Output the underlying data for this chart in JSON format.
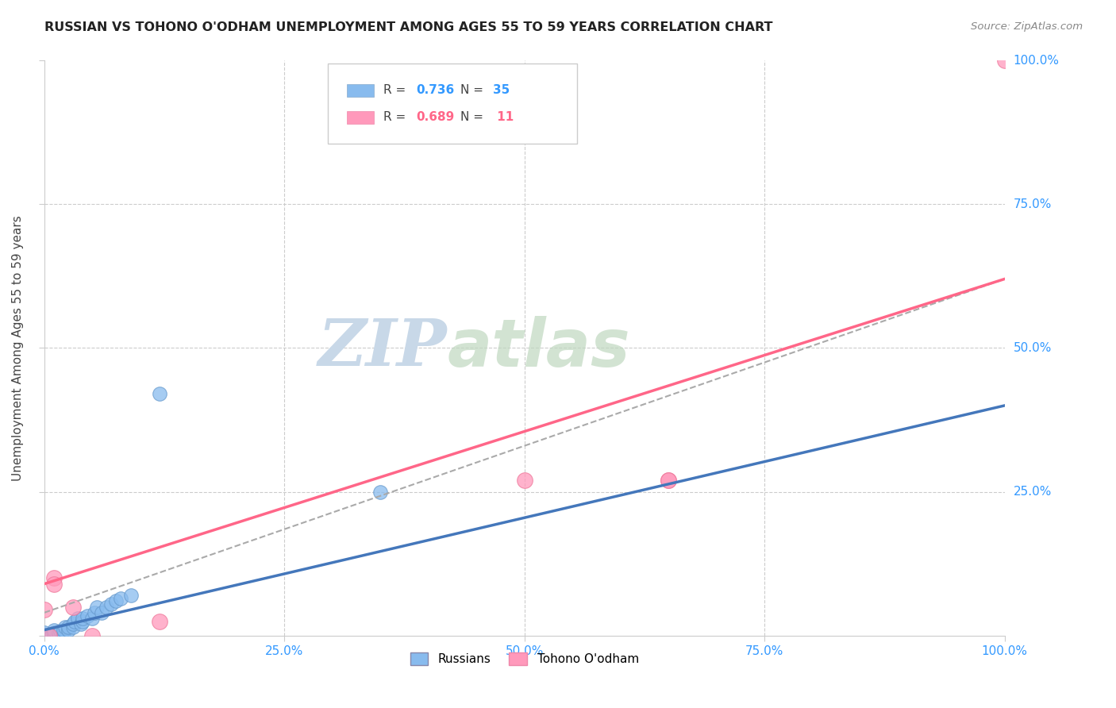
{
  "title": "RUSSIAN VS TOHONO O'ODHAM UNEMPLOYMENT AMONG AGES 55 TO 59 YEARS CORRELATION CHART",
  "source": "Source: ZipAtlas.com",
  "ylabel": "Unemployment Among Ages 55 to 59 years",
  "background_color": "#ffffff",
  "grid_color": "#cccccc",
  "watermark_zip": "ZIP",
  "watermark_atlas": "atlas",
  "xlim": [
    0,
    1.0
  ],
  "ylim": [
    0,
    1.0
  ],
  "xticks": [
    0.0,
    0.25,
    0.5,
    0.75,
    1.0
  ],
  "yticks": [
    0.0,
    0.25,
    0.5,
    0.75,
    1.0
  ],
  "xtick_labels": [
    "0.0%",
    "25.0%",
    "50.0%",
    "75.0%",
    "100.0%"
  ],
  "right_ytick_labels": [
    "100.0%",
    "75.0%",
    "50.0%",
    "25.0%"
  ],
  "russian_color": "#88BBEE",
  "tohono_color": "#FF99BB",
  "russian_line_color": "#4477BB",
  "tohono_line_color": "#FF6688",
  "dashed_line_color": "#AAAAAA",
  "r_russian": 0.736,
  "n_russian": 35,
  "r_tohono": 0.689,
  "n_tohono": 11,
  "russians_x": [
    0.0,
    0.0,
    0.0,
    0.005,
    0.007,
    0.008,
    0.01,
    0.01,
    0.01,
    0.015,
    0.017,
    0.02,
    0.02,
    0.022,
    0.025,
    0.025,
    0.03,
    0.03,
    0.032,
    0.035,
    0.038,
    0.04,
    0.04,
    0.045,
    0.05,
    0.052,
    0.055,
    0.06,
    0.065,
    0.07,
    0.075,
    0.08,
    0.09,
    0.12,
    0.35
  ],
  "russians_y": [
    0.0,
    0.0,
    0.005,
    0.0,
    0.0,
    0.0,
    0.0,
    0.005,
    0.01,
    0.005,
    0.008,
    0.0,
    0.01,
    0.015,
    0.01,
    0.015,
    0.015,
    0.02,
    0.025,
    0.03,
    0.02,
    0.025,
    0.03,
    0.035,
    0.03,
    0.04,
    0.05,
    0.04,
    0.05,
    0.055,
    0.06,
    0.065,
    0.07,
    0.42,
    0.25
  ],
  "tohono_x": [
    0.0,
    0.005,
    0.01,
    0.01,
    0.03,
    0.05,
    0.12,
    0.5,
    0.65,
    0.65,
    1.0
  ],
  "tohono_y": [
    0.045,
    0.0,
    0.1,
    0.09,
    0.05,
    0.0,
    0.025,
    0.27,
    0.27,
    0.27,
    1.0
  ],
  "russian_trend_x0": 0.0,
  "russian_trend_y0": 0.01,
  "russian_trend_x1": 1.0,
  "russian_trend_y1": 0.4,
  "tohono_trend_x0": 0.0,
  "tohono_trend_y0": 0.09,
  "tohono_trend_x1": 1.0,
  "tohono_trend_y1": 0.62,
  "dashed_trend_x0": 0.0,
  "dashed_trend_y0": 0.04,
  "dashed_trend_x1": 1.0,
  "dashed_trend_y1": 0.62
}
